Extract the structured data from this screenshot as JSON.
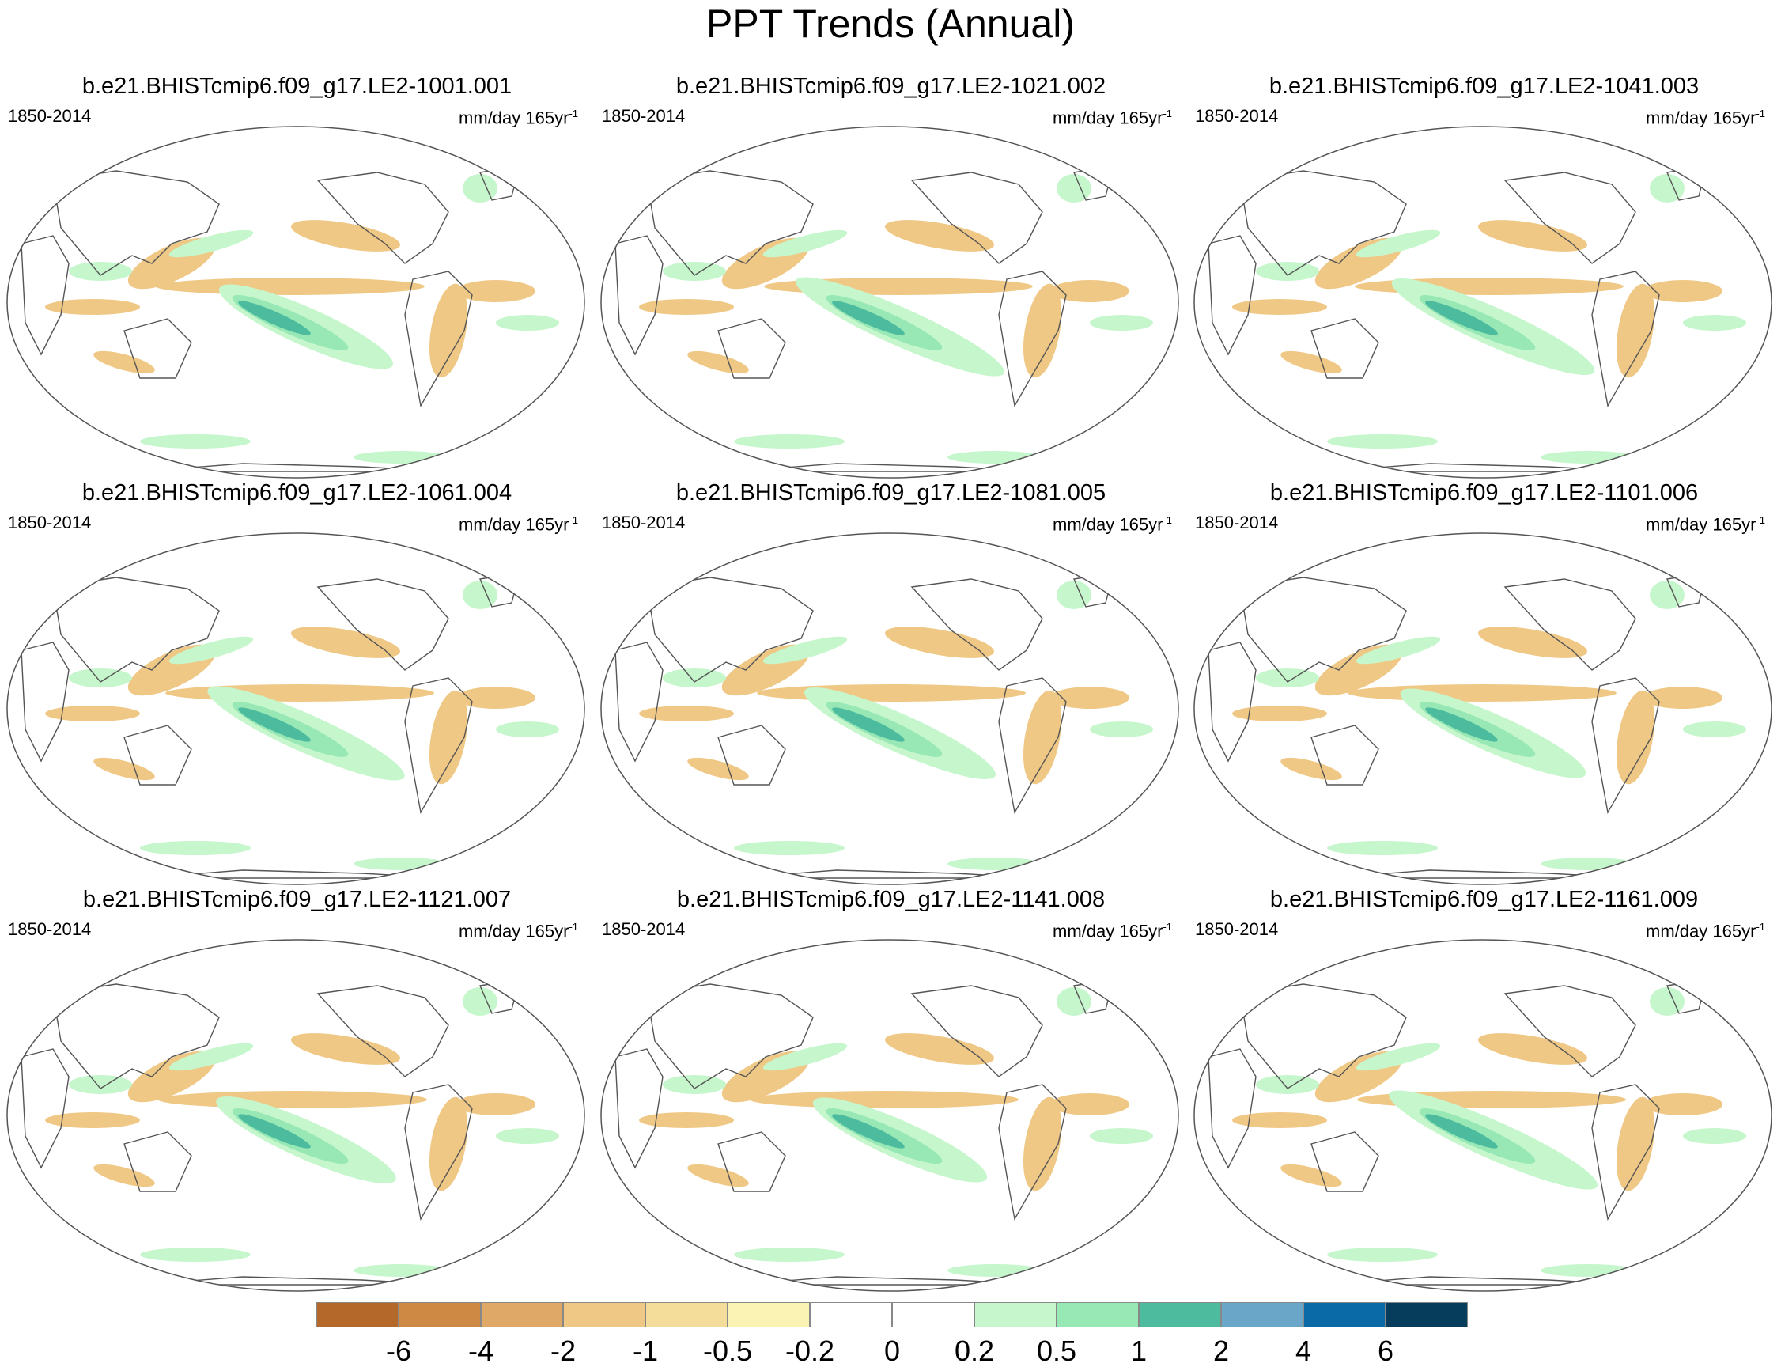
{
  "figure": {
    "title": "PPT Trends (Annual)",
    "period": "1850-2014",
    "units_prefix": "mm/day 165yr",
    "units_exp": "-1"
  },
  "panels": [
    {
      "label": "b.e21.BHISTcmip6.f09_g17.LE2-1001.001"
    },
    {
      "label": "b.e21.BHISTcmip6.f09_g17.LE2-1021.002"
    },
    {
      "label": "b.e21.BHISTcmip6.f09_g17.LE2-1041.003"
    },
    {
      "label": "b.e21.BHISTcmip6.f09_g17.LE2-1061.004"
    },
    {
      "label": "b.e21.BHISTcmip6.f09_g17.LE2-1081.005"
    },
    {
      "label": "b.e21.BHISTcmip6.f09_g17.LE2-1101.006"
    },
    {
      "label": "b.e21.BHISTcmip6.f09_g17.LE2-1121.007"
    },
    {
      "label": "b.e21.BHISTcmip6.f09_g17.LE2-1141.008"
    },
    {
      "label": "b.e21.BHISTcmip6.f09_g17.LE2-1161.009"
    }
  ],
  "colorbar": {
    "colors": [
      "#b4692a",
      "#ce8a45",
      "#dfa866",
      "#f0c886",
      "#f4dc9a",
      "#fbf3b4",
      "#ffffff",
      "#ffffff",
      "#c6f6cc",
      "#98e8b6",
      "#4dbc9e",
      "#6aa6c8",
      "#0a6aa8",
      "#063c5c"
    ],
    "labels": [
      "-6",
      "-4",
      "-2",
      "-1",
      "-0.5",
      "-0.2",
      "0",
      "0.2",
      "0.5",
      "1",
      "2",
      "4",
      "6"
    ]
  },
  "palette": {
    "land_outline": "#555555",
    "dry": "#f0c886",
    "dry_strong": "#dfa866",
    "wet": "#c6f6cc",
    "wet_mid": "#98e8b6",
    "wet_strong": "#4dbc9e"
  }
}
